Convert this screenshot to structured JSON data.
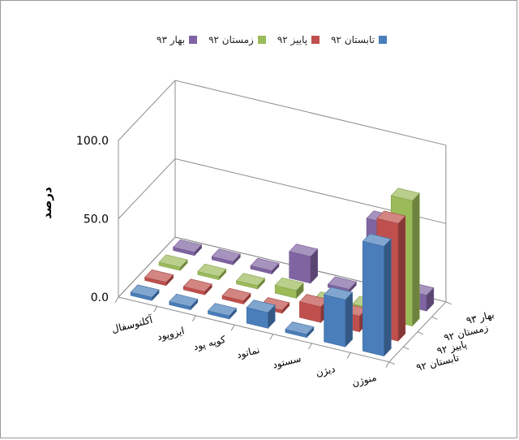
{
  "chart_data": {
    "type": "bar",
    "title": "",
    "xlabel": "",
    "ylabel": "درصد",
    "ylim": [
      0,
      100
    ],
    "yticks": [
      "0.0",
      "50.0",
      "100.0"
    ],
    "categories": [
      "آکلتوسفال",
      "ایزوپود",
      "کوپه پود",
      "نماتود",
      "سستود",
      "دیژن",
      "منوژن"
    ],
    "series": [
      {
        "name": "تابستان ۹۲",
        "color": "#4a7ebb",
        "values": [
          2,
          2,
          2,
          10,
          2,
          30,
          70
        ]
      },
      {
        "name": "پاییز ۹۲",
        "color": "#c0504d",
        "values": [
          2,
          2,
          2,
          2,
          10,
          10,
          75
        ]
      },
      {
        "name": "زمستان ۹۲",
        "color": "#9bbb59",
        "values": [
          2,
          2,
          2,
          5,
          2,
          5,
          80
        ]
      },
      {
        "name": "بهار ۹۳",
        "color": "#8064a2",
        "values": [
          2,
          2,
          2,
          17,
          2,
          50,
          10
        ]
      }
    ],
    "grid": true,
    "legend_position": "top"
  }
}
